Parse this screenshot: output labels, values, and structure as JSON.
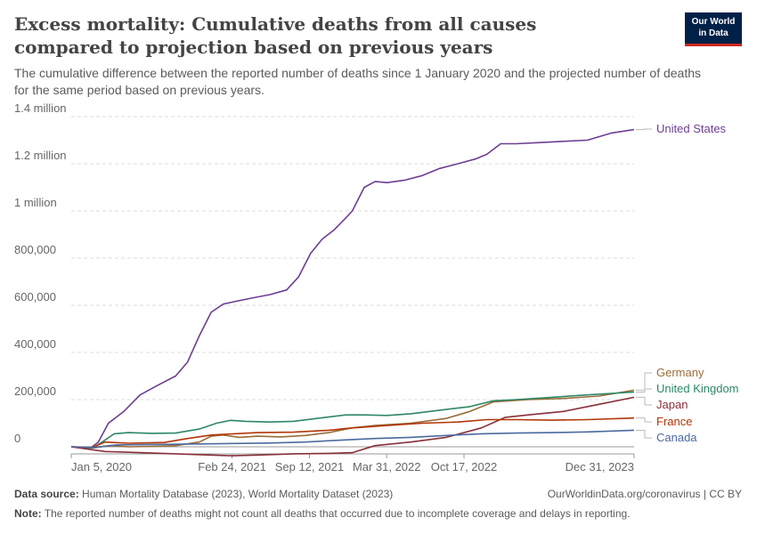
{
  "header": {
    "title": "Excess mortality: Cumulative deaths from all causes compared to projection based on previous years",
    "subtitle": "The cumulative difference between the reported number of deaths since 1 January 2020 and the projected number of deaths for the same period based on previous years.",
    "logo_line1": "Our World",
    "logo_line2": "in Data"
  },
  "footer": {
    "source_label": "Data source:",
    "source_text": "Human Mortality Database (2023), World Mortality Dataset (2023)",
    "right_text": "OurWorldinData.org/coronavirus | CC BY",
    "note_label": "Note:",
    "note_text": "The reported number of deaths might not count all deaths that occurred due to incomplete coverage and delays in reporting."
  },
  "chart_data": {
    "type": "line",
    "title": "Excess mortality: Cumulative deaths from all causes compared to projection based on previous years",
    "ylim": [
      0,
      1400000
    ],
    "xlim": [
      "2020-01-05",
      "2023-12-31"
    ],
    "y_ticks": [
      {
        "value": 0,
        "label": "0"
      },
      {
        "value": 200000,
        "label": "200,000"
      },
      {
        "value": 400000,
        "label": "400,000"
      },
      {
        "value": 600000,
        "label": "600,000"
      },
      {
        "value": 800000,
        "label": "800,000"
      },
      {
        "value": 1000000,
        "label": "1 million"
      },
      {
        "value": 1200000,
        "label": "1.2 million"
      },
      {
        "value": 1400000,
        "label": "1.4 million"
      }
    ],
    "x_ticks": [
      {
        "value": "2020-01-05",
        "label": "Jan 5, 2020"
      },
      {
        "value": "2021-02-24",
        "label": "Feb 24, 2021"
      },
      {
        "value": "2021-09-12",
        "label": "Sep 12, 2021"
      },
      {
        "value": "2022-03-31",
        "label": "Mar 31, 2022"
      },
      {
        "value": "2022-10-17",
        "label": "Oct 17, 2022"
      },
      {
        "value": "2023-12-31",
        "label": "Dec 31, 2023"
      }
    ],
    "grid": true,
    "legend": "right-end-labels",
    "series": [
      {
        "name": "United States",
        "color": "#6d3e91",
        "points": [
          [
            "2020-01-05",
            0
          ],
          [
            "2020-02-20",
            -10000
          ],
          [
            "2020-03-15",
            20000
          ],
          [
            "2020-04-10",
            100000
          ],
          [
            "2020-05-20",
            150000
          ],
          [
            "2020-07-01",
            220000
          ],
          [
            "2020-08-15",
            260000
          ],
          [
            "2020-10-01",
            300000
          ],
          [
            "2020-11-01",
            360000
          ],
          [
            "2020-12-01",
            470000
          ],
          [
            "2021-01-01",
            570000
          ],
          [
            "2021-02-01",
            605000
          ],
          [
            "2021-03-01",
            615000
          ],
          [
            "2021-04-15",
            630000
          ],
          [
            "2021-06-01",
            645000
          ],
          [
            "2021-07-15",
            665000
          ],
          [
            "2021-08-15",
            720000
          ],
          [
            "2021-09-15",
            820000
          ],
          [
            "2021-10-15",
            880000
          ],
          [
            "2021-11-15",
            920000
          ],
          [
            "2021-12-15",
            970000
          ],
          [
            "2022-01-01",
            1000000
          ],
          [
            "2022-02-01",
            1100000
          ],
          [
            "2022-03-01",
            1125000
          ],
          [
            "2022-04-01",
            1120000
          ],
          [
            "2022-05-15",
            1130000
          ],
          [
            "2022-07-01",
            1150000
          ],
          [
            "2022-08-15",
            1180000
          ],
          [
            "2022-10-01",
            1200000
          ],
          [
            "2022-11-15",
            1220000
          ],
          [
            "2022-12-15",
            1240000
          ],
          [
            "2023-01-20",
            1285000
          ],
          [
            "2023-03-01",
            1285000
          ],
          [
            "2023-05-01",
            1290000
          ],
          [
            "2023-07-01",
            1295000
          ],
          [
            "2023-09-01",
            1300000
          ],
          [
            "2023-11-01",
            1330000
          ],
          [
            "2023-12-31",
            1345000
          ]
        ]
      },
      {
        "name": "Germany",
        "color": "#996d39",
        "points": [
          [
            "2020-01-05",
            0
          ],
          [
            "2020-03-01",
            -5000
          ],
          [
            "2020-04-15",
            5000
          ],
          [
            "2020-06-01",
            0
          ],
          [
            "2020-08-01",
            2000
          ],
          [
            "2020-10-01",
            5000
          ],
          [
            "2020-12-01",
            20000
          ],
          [
            "2021-01-01",
            45000
          ],
          [
            "2021-02-01",
            50000
          ],
          [
            "2021-03-15",
            40000
          ],
          [
            "2021-05-01",
            45000
          ],
          [
            "2021-07-01",
            42000
          ],
          [
            "2021-09-01",
            48000
          ],
          [
            "2021-11-01",
            60000
          ],
          [
            "2021-12-31",
            80000
          ],
          [
            "2022-03-01",
            90000
          ],
          [
            "2022-06-01",
            100000
          ],
          [
            "2022-09-01",
            120000
          ],
          [
            "2022-11-01",
            150000
          ],
          [
            "2023-01-01",
            190000
          ],
          [
            "2023-04-01",
            200000
          ],
          [
            "2023-07-01",
            205000
          ],
          [
            "2023-10-01",
            215000
          ],
          [
            "2023-12-31",
            240000
          ]
        ]
      },
      {
        "name": "United Kingdom",
        "color": "#2d8766",
        "points": [
          [
            "2020-01-05",
            0
          ],
          [
            "2020-03-01",
            -5000
          ],
          [
            "2020-03-25",
            20000
          ],
          [
            "2020-04-25",
            55000
          ],
          [
            "2020-06-01",
            60000
          ],
          [
            "2020-08-01",
            57000
          ],
          [
            "2020-10-01",
            58000
          ],
          [
            "2020-12-01",
            75000
          ],
          [
            "2021-01-15",
            100000
          ],
          [
            "2021-02-20",
            112000
          ],
          [
            "2021-04-01",
            108000
          ],
          [
            "2021-06-01",
            105000
          ],
          [
            "2021-08-01",
            108000
          ],
          [
            "2021-10-01",
            120000
          ],
          [
            "2021-12-15",
            135000
          ],
          [
            "2022-02-01",
            135000
          ],
          [
            "2022-04-01",
            133000
          ],
          [
            "2022-06-01",
            140000
          ],
          [
            "2022-08-15",
            155000
          ],
          [
            "2022-11-01",
            170000
          ],
          [
            "2023-01-01",
            195000
          ],
          [
            "2023-03-01",
            200000
          ],
          [
            "2023-06-01",
            210000
          ],
          [
            "2023-09-01",
            220000
          ],
          [
            "2023-12-31",
            232000
          ]
        ]
      },
      {
        "name": "Japan",
        "color": "#883039",
        "points": [
          [
            "2020-01-05",
            0
          ],
          [
            "2020-04-01",
            -20000
          ],
          [
            "2020-07-01",
            -25000
          ],
          [
            "2020-10-01",
            -30000
          ],
          [
            "2021-01-01",
            -35000
          ],
          [
            "2021-02-24",
            -38000
          ],
          [
            "2021-05-01",
            -35000
          ],
          [
            "2021-08-01",
            -30000
          ],
          [
            "2021-11-01",
            -28000
          ],
          [
            "2022-01-01",
            -25000
          ],
          [
            "2022-03-01",
            5000
          ],
          [
            "2022-06-01",
            20000
          ],
          [
            "2022-09-01",
            40000
          ],
          [
            "2022-12-01",
            80000
          ],
          [
            "2023-02-01",
            125000
          ],
          [
            "2023-04-01",
            135000
          ],
          [
            "2023-07-01",
            150000
          ],
          [
            "2023-10-01",
            180000
          ],
          [
            "2023-12-31",
            210000
          ]
        ]
      },
      {
        "name": "France",
        "color": "#b13507",
        "points": [
          [
            "2020-01-05",
            0
          ],
          [
            "2020-03-01",
            -2000
          ],
          [
            "2020-04-01",
            20000
          ],
          [
            "2020-06-01",
            15000
          ],
          [
            "2020-09-01",
            18000
          ],
          [
            "2020-11-01",
            35000
          ],
          [
            "2021-01-01",
            50000
          ],
          [
            "2021-03-01",
            55000
          ],
          [
            "2021-05-01",
            60000
          ],
          [
            "2021-08-01",
            62000
          ],
          [
            "2021-11-01",
            70000
          ],
          [
            "2022-01-01",
            80000
          ],
          [
            "2022-04-01",
            90000
          ],
          [
            "2022-07-01",
            100000
          ],
          [
            "2022-10-01",
            105000
          ],
          [
            "2022-12-15",
            115000
          ],
          [
            "2023-03-01",
            115000
          ],
          [
            "2023-06-01",
            113000
          ],
          [
            "2023-09-01",
            115000
          ],
          [
            "2023-12-31",
            122000
          ]
        ]
      },
      {
        "name": "Canada",
        "color": "#4c6a9c",
        "points": [
          [
            "2020-01-05",
            0
          ],
          [
            "2020-03-01",
            -3000
          ],
          [
            "2020-05-01",
            8000
          ],
          [
            "2020-08-01",
            10000
          ],
          [
            "2020-12-01",
            12000
          ],
          [
            "2021-03-01",
            14000
          ],
          [
            "2021-06-01",
            16000
          ],
          [
            "2021-09-01",
            20000
          ],
          [
            "2021-12-01",
            28000
          ],
          [
            "2022-03-01",
            35000
          ],
          [
            "2022-06-01",
            40000
          ],
          [
            "2022-09-01",
            48000
          ],
          [
            "2022-12-01",
            55000
          ],
          [
            "2023-03-01",
            58000
          ],
          [
            "2023-06-01",
            60000
          ],
          [
            "2023-09-01",
            63000
          ],
          [
            "2023-12-31",
            70000
          ]
        ]
      }
    ]
  }
}
